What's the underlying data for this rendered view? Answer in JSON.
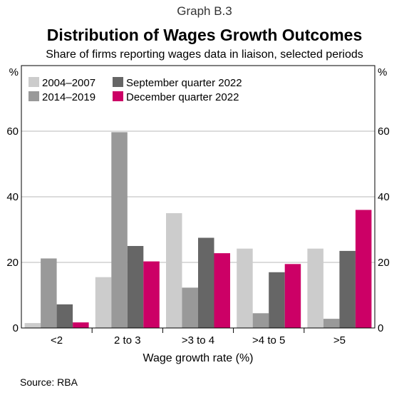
{
  "header": {
    "graph_number": "Graph B.3",
    "title": "Distribution of Wages Growth Outcomes",
    "subtitle": "Share of firms reporting wages data in liaison, selected periods"
  },
  "source": "Source:   RBA",
  "chart_data": {
    "type": "bar",
    "title": "Distribution of Wages Growth Outcomes",
    "subtitle": "Share of firms reporting wages data in liaison, selected periods",
    "xlabel": "Wage growth rate (%)",
    "ylabel_left": "%",
    "ylabel_right": "%",
    "categories": [
      "<2",
      "2 to 3",
      ">3 to 4",
      ">4 to 5",
      ">5"
    ],
    "ylim": [
      0,
      80
    ],
    "yticks": [
      0,
      20,
      40,
      60
    ],
    "grid": true,
    "legend_position": "top-left",
    "series": [
      {
        "name": "2004–2007",
        "color": "#cccccc",
        "values": [
          1.5,
          15.5,
          35,
          24.2,
          24.2
        ]
      },
      {
        "name": "2014–2019",
        "color": "#999999",
        "values": [
          21.2,
          59.7,
          12.3,
          4.5,
          2.8
        ]
      },
      {
        "name": "September quarter 2022",
        "color": "#666666",
        "values": [
          7.2,
          25,
          27.5,
          17,
          23.5
        ]
      },
      {
        "name": "December quarter 2022",
        "color": "#cc0066",
        "values": [
          1.7,
          20.3,
          22.8,
          19.5,
          36
        ]
      }
    ]
  }
}
